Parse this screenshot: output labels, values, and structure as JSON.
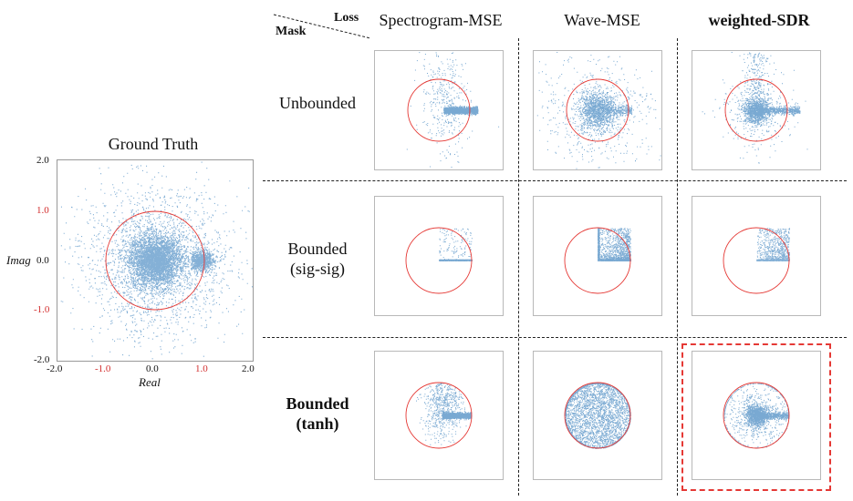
{
  "ground_truth": {
    "title": "Ground Truth",
    "xlabel": "Real",
    "ylabel": "Imag",
    "ticks": [
      "-2.0",
      "-1.0",
      "0.0",
      "1.0",
      "2.0"
    ],
    "unit_circle_color": "#e53935",
    "point_color": "#1f6fb4"
  },
  "corner": {
    "loss_label": "Loss",
    "mask_label": "Mask"
  },
  "columns": [
    "Spectrogram-MSE",
    "Wave-MSE",
    "weighted-SDR"
  ],
  "rows": [
    {
      "label_line1": "Unbounded",
      "label_line2": ""
    },
    {
      "label_line1": "Bounded",
      "label_line2": "(sig-sig)"
    },
    {
      "label_line1": "Bounded",
      "label_line2": "(tanh)"
    }
  ],
  "highlight": {
    "row": 3,
    "column": "weighted-SDR",
    "color": "#e53935"
  },
  "chart_data": [
    {
      "type": "scatter",
      "title": "Ground Truth",
      "xlabel": "Real",
      "ylabel": "Imag",
      "xlim": [
        -2.0,
        2.0
      ],
      "ylim": [
        -2.0,
        2.0
      ],
      "annotations": [
        "unit circle (radius 1.0)",
        "dense cluster near (0,0)",
        "secondary cluster near (1,0)"
      ]
    },
    {
      "type": "scatter",
      "mask": "Unbounded",
      "loss": "Spectrogram-MSE",
      "xlim": [
        -2.0,
        2.0
      ],
      "ylim": [
        -2.0,
        2.0
      ],
      "distribution": "horizontal streak along real axis from 0 to ~1.3"
    },
    {
      "type": "scatter",
      "mask": "Unbounded",
      "loss": "Wave-MSE",
      "xlim": [
        -2.0,
        2.0
      ],
      "ylim": [
        -2.0,
        2.0
      ],
      "distribution": "large dense blob around origin, wide scatter"
    },
    {
      "type": "scatter",
      "mask": "Unbounded",
      "loss": "weighted-SDR",
      "xlim": [
        -2.0,
        2.0
      ],
      "ylim": [
        -2.0,
        2.0
      ],
      "distribution": "blob near origin with streak to ~1.5"
    },
    {
      "type": "scatter",
      "mask": "Bounded (sig-sig)",
      "loss": "Spectrogram-MSE",
      "xlim": [
        -2.0,
        2.0
      ],
      "ylim": [
        -2.0,
        2.0
      ],
      "distribution": "thin line along real axis, first quadrant only"
    },
    {
      "type": "scatter",
      "mask": "Bounded (sig-sig)",
      "loss": "Wave-MSE",
      "xlim": [
        -2.0,
        2.0
      ],
      "ylim": [
        -2.0,
        2.0
      ],
      "distribution": "first quadrant square [0,1]x[0,1]"
    },
    {
      "type": "scatter",
      "mask": "Bounded (sig-sig)",
      "loss": "weighted-SDR",
      "xlim": [
        -2.0,
        2.0
      ],
      "ylim": [
        -2.0,
        2.0
      ],
      "distribution": "first quadrant square, sparse"
    },
    {
      "type": "scatter",
      "mask": "Bounded (tanh)",
      "loss": "Spectrogram-MSE",
      "xlim": [
        -2.0,
        2.0
      ],
      "ylim": [
        -2.0,
        2.0
      ],
      "distribution": "streak along real axis inside unit circle"
    },
    {
      "type": "scatter",
      "mask": "Bounded (tanh)",
      "loss": "Wave-MSE",
      "xlim": [
        -2.0,
        2.0
      ],
      "ylim": [
        -2.0,
        2.0
      ],
      "distribution": "filled unit disk"
    },
    {
      "type": "scatter",
      "mask": "Bounded (tanh)",
      "loss": "weighted-SDR",
      "xlim": [
        -2.0,
        2.0
      ],
      "ylim": [
        -2.0,
        2.0
      ],
      "distribution": "blob near origin with streak, bounded by unit circle"
    }
  ]
}
